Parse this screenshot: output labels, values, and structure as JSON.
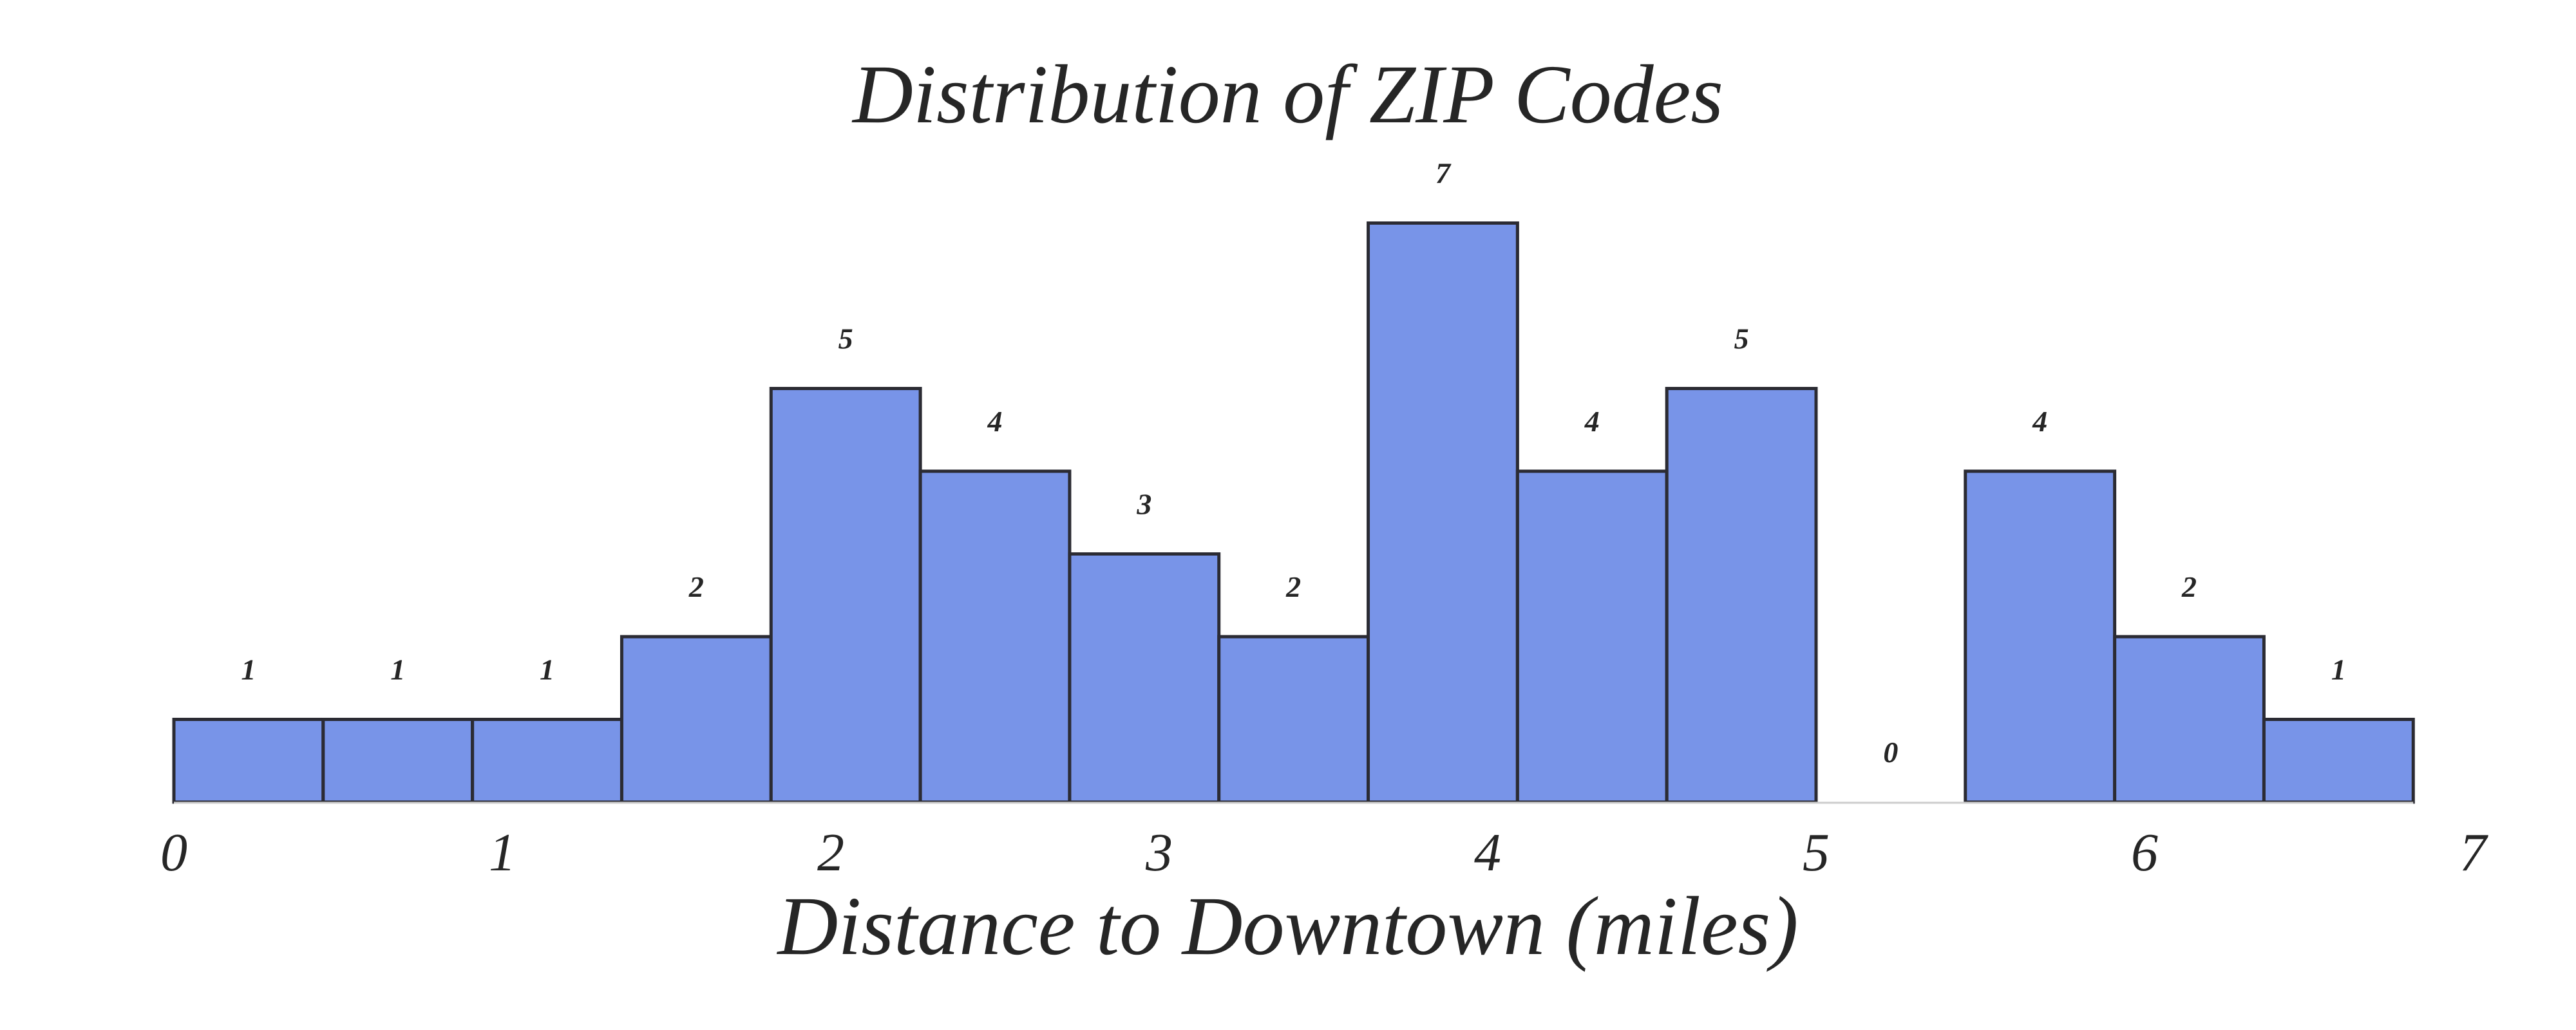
{
  "chart_data": {
    "type": "bar",
    "title": "Distribution of ZIP Codes",
    "xlabel": "Distance to Downtown (miles)",
    "ylabel": "",
    "bin_edges": [
      0,
      0.4545,
      0.9091,
      1.3636,
      1.8182,
      2.2727,
      2.7273,
      3.1818,
      3.6364,
      4.0909,
      4.5455,
      5.0,
      5.4545,
      5.9091,
      6.3636,
      6.8182
    ],
    "counts": [
      1,
      1,
      1,
      2,
      5,
      4,
      3,
      2,
      7,
      4,
      5,
      0,
      4,
      2,
      1
    ],
    "data_labels": [
      "1",
      "1",
      "1",
      "2",
      "5",
      "4",
      "3",
      "2",
      "7",
      "4",
      "5",
      "0",
      "4",
      "2",
      "1"
    ],
    "x_ticks": [
      0,
      1,
      2,
      3,
      4,
      5,
      6,
      7
    ],
    "x_tick_labels": [
      "0",
      "1",
      "2",
      "3",
      "4",
      "5",
      "6",
      "7"
    ],
    "xlim": [
      0,
      7
    ],
    "ylim": [
      0,
      7
    ],
    "grid": false,
    "legend": "none",
    "colors": {
      "bar_fill": "#7894e8",
      "bar_edge": "#2b2b33",
      "text": "#262626",
      "axis_line": "#cccccc"
    }
  }
}
